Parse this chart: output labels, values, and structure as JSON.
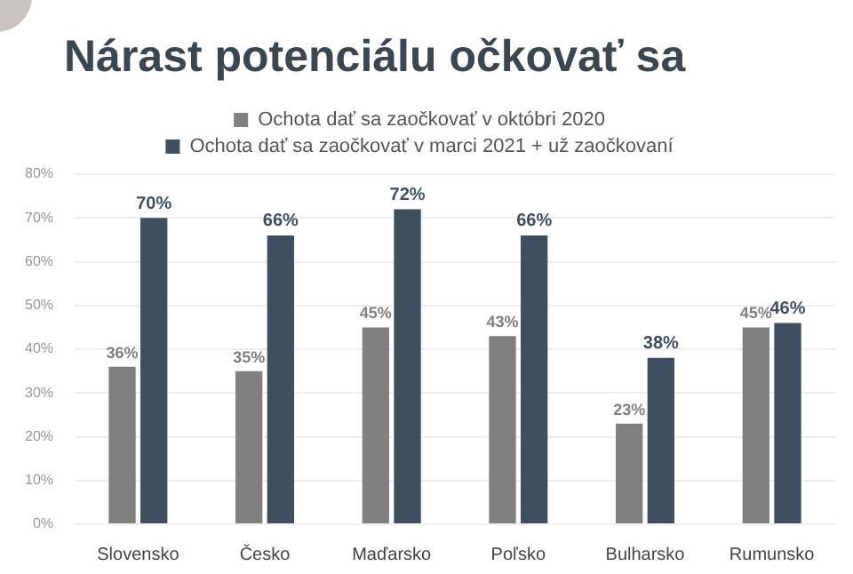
{
  "chart_data": {
    "type": "bar",
    "title": "Nárast potenciálu očkovať sa",
    "categories": [
      "Slovensko",
      "Česko",
      "Maďarsko",
      "Poľsko",
      "Bulharsko",
      "Rumunsko"
    ],
    "series": [
      {
        "name": "Ochota dať sa zaočkovať v októbri 2020",
        "color": "#808080",
        "values": [
          36,
          35,
          45,
          43,
          23,
          45
        ],
        "value_labels": [
          "36%",
          "35%",
          "45%",
          "43%",
          "23%",
          "45%"
        ]
      },
      {
        "name": "Ochota dať sa zaočkovať v marci 2021 + už zaočkovaní",
        "color": "#3f4f5f",
        "values": [
          70,
          66,
          72,
          66,
          38,
          46
        ],
        "value_labels": [
          "70%",
          "66%",
          "72%",
          "66%",
          "38%",
          "46%"
        ]
      }
    ],
    "ylim": [
      0,
      80
    ],
    "yticks": [
      {
        "value": 0,
        "label": "0%"
      },
      {
        "value": 10,
        "label": "10%"
      },
      {
        "value": 20,
        "label": "20%"
      },
      {
        "value": 30,
        "label": "30%"
      },
      {
        "value": 40,
        "label": "40%"
      },
      {
        "value": 50,
        "label": "50%"
      },
      {
        "value": 60,
        "label": "60%"
      },
      {
        "value": 70,
        "label": "70%"
      },
      {
        "value": 80,
        "label": "80%"
      }
    ],
    "grid": "y",
    "legend": "top"
  }
}
